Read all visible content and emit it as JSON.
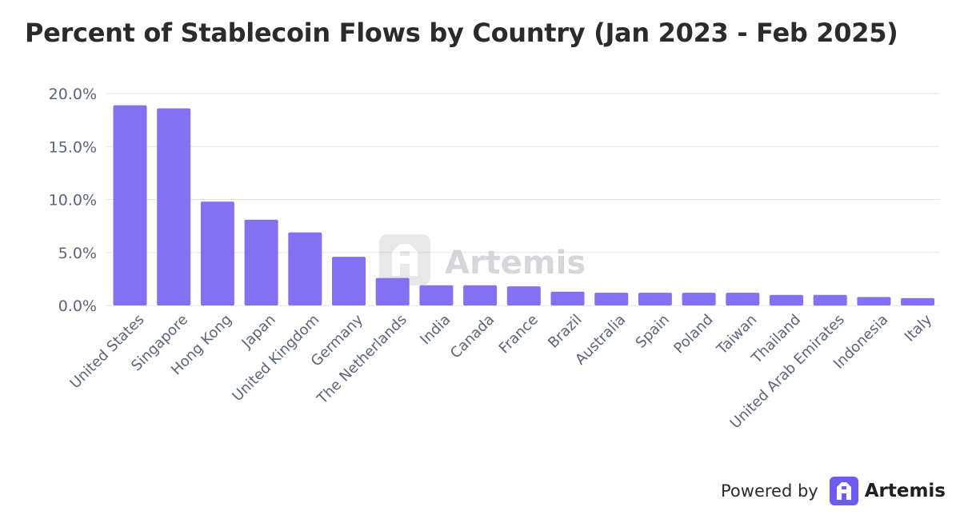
{
  "title": "Percent of Stablecoin Flows by Country (Jan 2023 - Feb 2025)",
  "watermark": "Artemis",
  "footer": {
    "powered_by": "Powered by",
    "brand": "Artemis"
  },
  "colors": {
    "bar": "#8272F2",
    "grid": "#e6e6ea",
    "tick": "#5b6478",
    "title": "#2b2b2e",
    "brand": "#6e5cf0"
  },
  "icons": {
    "brand_logo": "artemis-logo-icon"
  },
  "chart_data": {
    "type": "bar",
    "categories": [
      "United States",
      "Singapore",
      "Hong Kong",
      "Japan",
      "United Kingdom",
      "Germany",
      "The Netherlands",
      "India",
      "Canada",
      "France",
      "Brazil",
      "Australia",
      "Spain",
      "Poland",
      "Taiwan",
      "Thailand",
      "United Arab Emirates",
      "Indonesia",
      "Italy"
    ],
    "values": [
      18.9,
      18.6,
      9.8,
      8.1,
      6.9,
      4.6,
      2.6,
      1.9,
      1.9,
      1.8,
      1.3,
      1.2,
      1.2,
      1.2,
      1.2,
      1.0,
      1.0,
      0.8,
      0.7
    ],
    "title": "Percent of Stablecoin Flows by Country (Jan 2023 - Feb 2025)",
    "xlabel": "",
    "ylabel": "",
    "ylim": [
      0,
      20
    ],
    "yticks": [
      "0.0%",
      "5.0%",
      "10.0%",
      "15.0%",
      "20.0%"
    ],
    "grid": true,
    "legend": "none"
  }
}
